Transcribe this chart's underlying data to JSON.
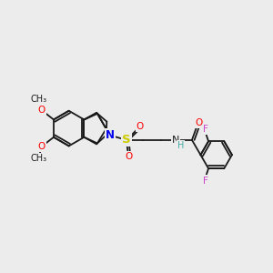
{
  "bg_color": "#ececec",
  "bond_color": "#1a1a1a",
  "bond_width": 1.3,
  "atom_colors": {
    "N": "#0000ee",
    "O": "#ff0000",
    "S": "#cccc00",
    "F": "#cc44cc",
    "H": "#44aaaa"
  },
  "font_size": 7.5
}
